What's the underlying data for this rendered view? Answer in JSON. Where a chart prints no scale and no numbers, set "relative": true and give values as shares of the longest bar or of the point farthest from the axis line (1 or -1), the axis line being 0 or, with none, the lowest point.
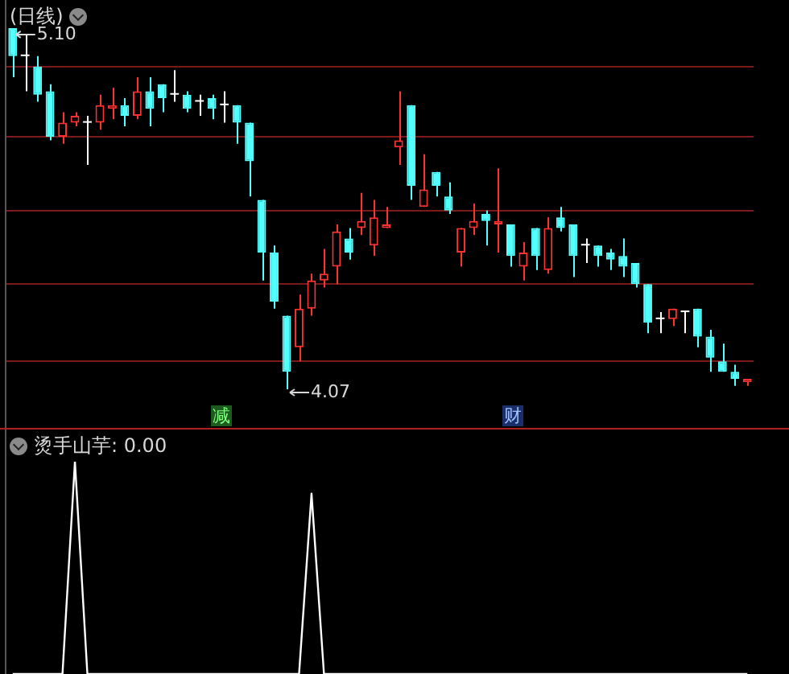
{
  "chart_data": [
    {
      "type": "candlestick",
      "title": "(日线)",
      "categories": [
        null,
        null,
        null,
        null,
        null,
        null,
        null,
        null,
        null,
        null,
        null,
        null,
        null,
        null,
        null,
        null,
        null,
        null,
        null,
        null,
        null,
        null,
        null,
        null,
        null,
        null,
        null,
        null,
        null,
        null,
        null,
        null,
        null,
        null,
        null,
        null,
        null,
        null,
        null,
        null,
        null,
        null,
        null,
        null,
        null,
        null,
        null,
        null,
        null,
        null,
        null,
        null,
        null,
        null,
        null,
        null,
        null,
        null,
        null,
        null
      ],
      "ohlc": [
        [
          5.1,
          5.1,
          4.96,
          5.02
        ],
        [
          5.02,
          5.08,
          4.92,
          5.02
        ],
        [
          4.99,
          5.02,
          4.89,
          4.91
        ],
        [
          4.92,
          4.94,
          4.78,
          4.79
        ],
        [
          4.79,
          4.86,
          4.77,
          4.83
        ],
        [
          4.83,
          4.86,
          4.82,
          4.85
        ],
        [
          4.83,
          4.85,
          4.71,
          4.83
        ],
        [
          4.83,
          4.91,
          4.81,
          4.88
        ],
        [
          4.87,
          4.93,
          4.84,
          4.88
        ],
        [
          4.88,
          4.9,
          4.82,
          4.85
        ],
        [
          4.85,
          4.96,
          4.84,
          4.92
        ],
        [
          4.92,
          4.96,
          4.82,
          4.87
        ],
        [
          4.94,
          4.94,
          4.86,
          4.9
        ],
        [
          4.91,
          4.98,
          4.89,
          4.91
        ],
        [
          4.91,
          4.92,
          4.86,
          4.87
        ],
        [
          4.89,
          4.91,
          4.85,
          4.89
        ],
        [
          4.9,
          4.91,
          4.84,
          4.87
        ],
        [
          4.88,
          4.92,
          4.83,
          4.88
        ],
        [
          4.88,
          4.88,
          4.77,
          4.83
        ],
        [
          4.83,
          4.83,
          4.62,
          4.72
        ],
        [
          4.61,
          4.61,
          4.38,
          4.46
        ],
        [
          4.46,
          4.48,
          4.3,
          4.32
        ],
        [
          4.28,
          4.28,
          4.07,
          4.12
        ],
        [
          4.19,
          4.34,
          4.15,
          4.3
        ],
        [
          4.3,
          4.4,
          4.28,
          4.38
        ],
        [
          4.38,
          4.47,
          4.36,
          4.4
        ],
        [
          4.42,
          4.54,
          4.37,
          4.52
        ],
        [
          4.5,
          4.53,
          4.44,
          4.46
        ],
        [
          4.53,
          4.63,
          4.51,
          4.55
        ],
        [
          4.48,
          4.61,
          4.45,
          4.56
        ],
        [
          4.53,
          4.59,
          4.53,
          4.54
        ],
        [
          4.76,
          4.92,
          4.71,
          4.78
        ],
        [
          4.88,
          4.88,
          4.61,
          4.65
        ],
        [
          4.59,
          4.74,
          4.59,
          4.64
        ],
        [
          4.69,
          4.69,
          4.62,
          4.65
        ],
        [
          4.62,
          4.66,
          4.57,
          4.58
        ],
        [
          4.46,
          4.53,
          4.42,
          4.53
        ],
        [
          4.53,
          4.6,
          4.51,
          4.55
        ],
        [
          4.57,
          4.58,
          4.48,
          4.55
        ],
        [
          4.54,
          4.7,
          4.46,
          4.55
        ],
        [
          4.54,
          4.54,
          4.42,
          4.45
        ],
        [
          4.42,
          4.49,
          4.38,
          4.46
        ],
        [
          4.53,
          4.53,
          4.41,
          4.45
        ],
        [
          4.41,
          4.56,
          4.4,
          4.53
        ],
        [
          4.56,
          4.59,
          4.52,
          4.53
        ],
        [
          4.54,
          4.54,
          4.39,
          4.45
        ],
        [
          4.48,
          4.5,
          4.43,
          4.48
        ],
        [
          4.48,
          4.48,
          4.42,
          4.45
        ],
        [
          4.46,
          4.47,
          4.41,
          4.44
        ],
        [
          4.45,
          4.5,
          4.39,
          4.42
        ],
        [
          4.43,
          4.43,
          4.36,
          4.37
        ],
        [
          4.37,
          4.37,
          4.23,
          4.26
        ],
        [
          4.27,
          4.29,
          4.23,
          4.27
        ],
        [
          4.27,
          4.3,
          4.25,
          4.3
        ],
        [
          4.29,
          4.29,
          4.23,
          4.29
        ],
        [
          4.3,
          4.3,
          4.19,
          4.22
        ],
        [
          4.22,
          4.24,
          4.12,
          4.16
        ],
        [
          4.15,
          4.2,
          4.12,
          4.12
        ],
        [
          4.12,
          4.14,
          4.08,
          4.1
        ],
        [
          4.09,
          4.1,
          4.08,
          4.1
        ]
      ],
      "colors": [
        "#54ffff",
        "#ffffff",
        "#54ffff",
        "#54ffff",
        "#ff3232",
        "#ff3232",
        "#ffffff",
        "#ff3232",
        "#ff3232",
        "#54ffff",
        "#ff3232",
        "#54ffff",
        "#54ffff",
        "#ffffff",
        "#54ffff",
        "#ffffff",
        "#54ffff",
        "#ffffff",
        "#54ffff",
        "#54ffff",
        "#54ffff",
        "#54ffff",
        "#54ffff",
        "#ff3232",
        "#ff3232",
        "#ff3232",
        "#ff3232",
        "#54ffff",
        "#ff3232",
        "#ff3232",
        "#ff3232",
        "#ff3232",
        "#54ffff",
        "#ff3232",
        "#54ffff",
        "#54ffff",
        "#ff3232",
        "#ff3232",
        "#54ffff",
        "#ff3232",
        "#54ffff",
        "#ff3232",
        "#54ffff",
        "#ff3232",
        "#54ffff",
        "#54ffff",
        "#ffffff",
        "#54ffff",
        "#54ffff",
        "#54ffff",
        "#54ffff",
        "#54ffff",
        "#ffffff",
        "#ff3232",
        "#ffffff",
        "#54ffff",
        "#54ffff",
        "#54ffff",
        "#54ffff",
        "#ff3232"
      ],
      "ylim": [
        3.96,
        5.18
      ],
      "yticks": [
        {
          "value": 4.99,
          "label": null
        },
        {
          "value": 4.79,
          "label": null
        },
        {
          "value": 4.58,
          "label": null
        },
        {
          "value": 4.37,
          "label": null
        },
        {
          "value": 4.15,
          "label": null
        }
      ],
      "grid": true,
      "tick_labels": false,
      "annotations": [
        "5.10",
        "4.07",
        "减",
        "财"
      ]
    },
    {
      "type": "line",
      "title": "烫手山芋: 0.00",
      "categories": [
        null,
        null,
        null,
        null,
        null,
        null,
        null,
        null,
        null,
        null,
        null,
        null,
        null,
        null,
        null,
        null,
        null,
        null,
        null,
        null,
        null,
        null,
        null,
        null,
        null,
        null,
        null,
        null,
        null,
        null,
        null,
        null,
        null,
        null,
        null,
        null,
        null,
        null,
        null,
        null,
        null,
        null,
        null,
        null,
        null,
        null,
        null,
        null,
        null,
        null,
        null,
        null,
        null,
        null,
        null,
        null,
        null,
        null,
        null,
        null
      ],
      "values": [
        0,
        0,
        0,
        0,
        0,
        1,
        0,
        0,
        0,
        0,
        0,
        0,
        0,
        0,
        0,
        0,
        0,
        0,
        0,
        0,
        0,
        0,
        0,
        0,
        0.85,
        0,
        0,
        0,
        0,
        0,
        0,
        0,
        0,
        0,
        0,
        0,
        0,
        0,
        0,
        0,
        0,
        0,
        0,
        0,
        0,
        0,
        0,
        0,
        0,
        0,
        0,
        0,
        0,
        0,
        0,
        0,
        0,
        0,
        0,
        0
      ],
      "color": "#ffffff",
      "relative": true
    }
  ]
}
